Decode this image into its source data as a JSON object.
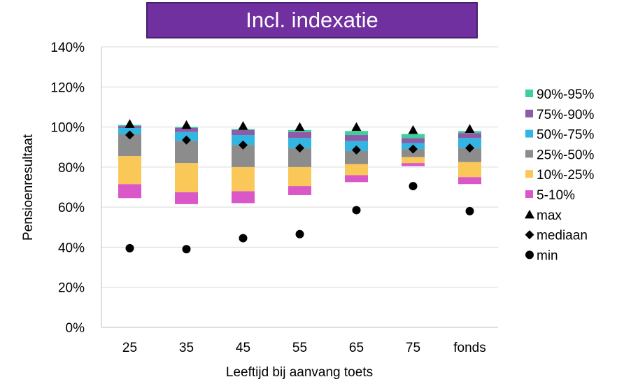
{
  "chart_data": {
    "type": "bar",
    "title": "Incl. indexatie",
    "xlabel": "Leeftijd bij aanvang toets",
    "ylabel": "Pensioenresultaat",
    "ylim": [
      0,
      140
    ],
    "yticks": [
      "0%",
      "20%",
      "40%",
      "60%",
      "80%",
      "100%",
      "120%",
      "140%"
    ],
    "categories": [
      "25",
      "35",
      "45",
      "55",
      "65",
      "75",
      "fonds"
    ],
    "legend_placement": "right",
    "grid": true,
    "series": [
      {
        "name": "5-10%",
        "color": "#d957c7",
        "from": [
          64.5,
          61.5,
          62,
          66,
          72.5,
          80.5,
          71.5
        ],
        "to": [
          71.5,
          67.5,
          68,
          70.5,
          76,
          82,
          75
        ]
      },
      {
        "name": "10%-25%",
        "color": "#fac858",
        "from": [
          71.5,
          67.5,
          68,
          70.5,
          76,
          82,
          75
        ],
        "to": [
          85.5,
          82,
          80,
          80,
          81.5,
          85,
          82.5
        ]
      },
      {
        "name": "25%-50%",
        "color": "#8c8c8c",
        "from": [
          85.5,
          82,
          80,
          80,
          81.5,
          85,
          82.5
        ],
        "to": [
          96.5,
          93,
          91,
          89.5,
          88,
          89,
          89.5
        ]
      },
      {
        "name": "50%-75%",
        "color": "#32b5e0",
        "from": [
          96.5,
          93,
          91,
          89.5,
          88,
          89,
          89.5
        ],
        "to": [
          99.5,
          97.5,
          96,
          94.5,
          93,
          92,
          94.5
        ]
      },
      {
        "name": "75%-90%",
        "color": "#8e5ba8",
        "from": [
          99.5,
          97.5,
          96,
          94.5,
          93,
          92,
          94.5
        ],
        "to": [
          100.5,
          99.5,
          98.5,
          97.5,
          96,
          94.5,
          97
        ]
      },
      {
        "name": "90%-95%",
        "color": "#3ecf9a",
        "from": [
          100.5,
          99.5,
          98.5,
          97.5,
          96,
          94.5,
          97
        ],
        "to": [
          101,
          100,
          99,
          98.5,
          98,
          96.5,
          98
        ]
      }
    ],
    "markers": [
      {
        "name": "max",
        "shape": "triangle",
        "values": [
          101.5,
          101,
          100.5,
          100,
          100,
          98.5,
          99
        ]
      },
      {
        "name": "mediaan",
        "shape": "diamond",
        "values": [
          96,
          93.5,
          91,
          89.5,
          88.5,
          89,
          89.5
        ]
      },
      {
        "name": "min",
        "shape": "circle",
        "values": [
          39.5,
          39,
          44.5,
          46.5,
          58.5,
          70.5,
          58
        ]
      }
    ]
  }
}
